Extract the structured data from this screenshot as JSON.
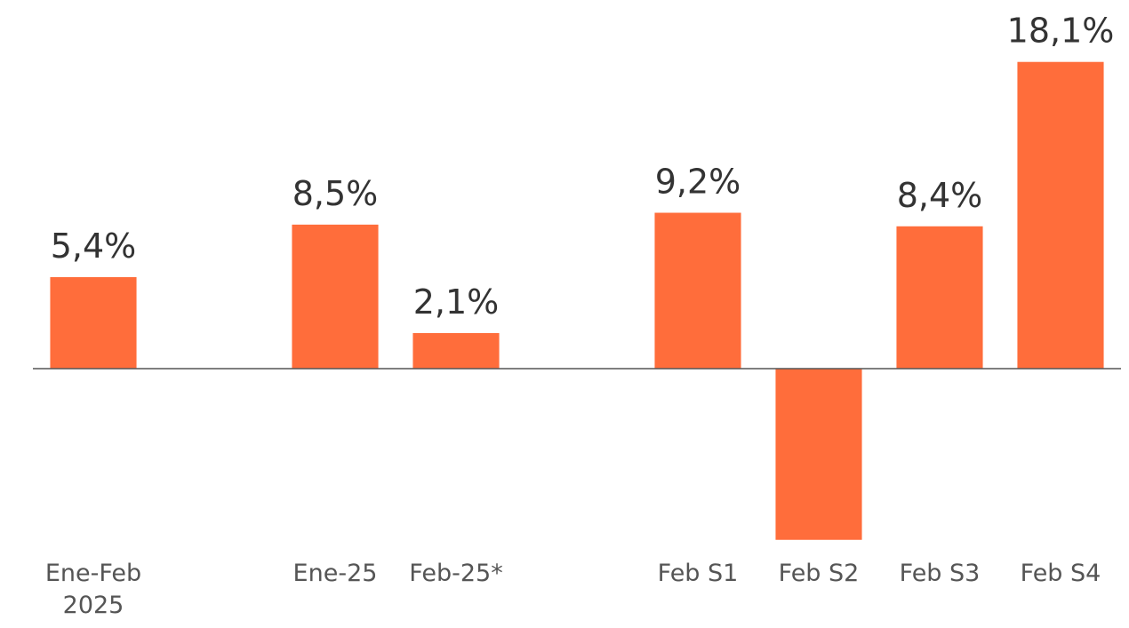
{
  "chart_data": {
    "type": "bar",
    "categories": [
      "Ene-Feb 2025",
      null,
      "Ene-25",
      "Feb-25*",
      null,
      "Feb S1",
      "Feb S2",
      "Feb S3",
      "Feb S4"
    ],
    "values": [
      5.4,
      null,
      8.5,
      2.1,
      null,
      9.2,
      -10.1,
      8.4,
      18.1
    ],
    "value_labels": [
      "5,4%",
      null,
      "8,5%",
      "2,1%",
      null,
      "9,2%",
      null,
      "8,4%",
      "18,1%"
    ],
    "color": "#ff6d3b",
    "ylim": [
      -12,
      19.5
    ]
  }
}
